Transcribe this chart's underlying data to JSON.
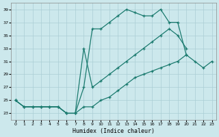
{
  "xlabel": "Humidex (Indice chaleur)",
  "bg_color": "#cce8ec",
  "grid_color": "#aacdd4",
  "line_color": "#1a7a6e",
  "series1_x": [
    0,
    1,
    2,
    3,
    4,
    5,
    6,
    7,
    8,
    9,
    10,
    11,
    12,
    13,
    14,
    15,
    16,
    17,
    18,
    19,
    20,
    21
  ],
  "series1_y": [
    25,
    24,
    24,
    24,
    24,
    24,
    23,
    23,
    27,
    36,
    36,
    37,
    38,
    39,
    38.5,
    38,
    38,
    39,
    37,
    37,
    32,
    null
  ],
  "series2_x": [
    0,
    1,
    2,
    3,
    4,
    5,
    6,
    7,
    8,
    9,
    10,
    11,
    12,
    13,
    14,
    15,
    16,
    17,
    18,
    19,
    20,
    21
  ],
  "series2_y": [
    25,
    24,
    24,
    24,
    24,
    24,
    23,
    23,
    33,
    27,
    28,
    29,
    30,
    31,
    32,
    33,
    34,
    35,
    36,
    35,
    33,
    null
  ],
  "series3_x": [
    0,
    1,
    2,
    3,
    4,
    5,
    6,
    7,
    8,
    9,
    10,
    11,
    12,
    13,
    14,
    15,
    16,
    17,
    18,
    19,
    20,
    21,
    22,
    23
  ],
  "series3_y": [
    25,
    24,
    24,
    24,
    24,
    24,
    23,
    23,
    24,
    24,
    25,
    25.5,
    26.5,
    27.5,
    28.5,
    29,
    29.5,
    30,
    30.5,
    31,
    32,
    31,
    30,
    31
  ],
  "xlim": [
    -0.5,
    23.5
  ],
  "ylim": [
    22,
    40
  ],
  "yticks": [
    23,
    25,
    27,
    29,
    31,
    33,
    35,
    37,
    39
  ],
  "xticks": [
    0,
    1,
    2,
    3,
    4,
    5,
    6,
    7,
    8,
    9,
    10,
    11,
    12,
    13,
    14,
    15,
    16,
    17,
    18,
    19,
    20,
    21,
    22,
    23
  ],
  "xticklabels": [
    "0",
    "1",
    "2",
    "3",
    "4",
    "5",
    "6",
    "7",
    "8",
    "9",
    "10",
    "11",
    "12",
    "13",
    "14",
    "15",
    "16",
    "17",
    "18",
    "19",
    "20",
    "21",
    "22",
    "23"
  ]
}
